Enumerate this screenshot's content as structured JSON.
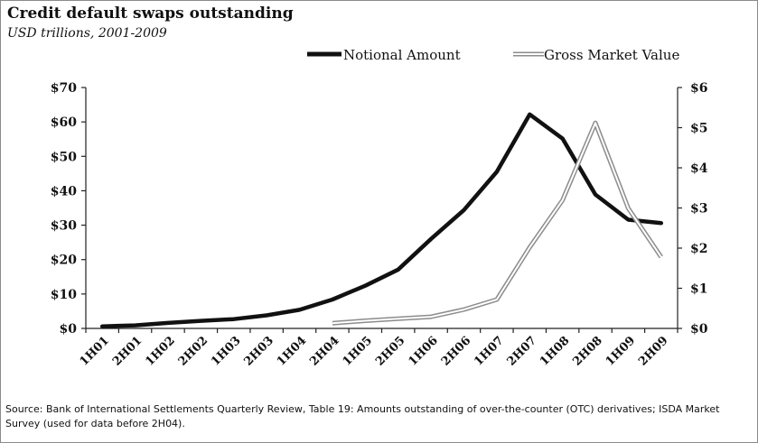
{
  "header": {
    "title": "Credit default swaps outstanding",
    "subtitle": "USD trillions, 2001-2009"
  },
  "footer": {
    "source": "Source: Bank of International Settlements Quarterly Review, Table 19: Amounts outstanding of over-the-counter (OTC) derivatives; ISDA Market Survey (used for data before 2H04)."
  },
  "chart_data": {
    "type": "line",
    "title": "Credit default swaps outstanding",
    "subtitle": "USD trillions, 2001-2009",
    "categories": [
      "1H01",
      "2H01",
      "1H02",
      "2H02",
      "1H03",
      "2H03",
      "1H04",
      "2H04",
      "1H05",
      "2H05",
      "1H06",
      "2H06",
      "1H07",
      "2H07",
      "1H08",
      "2H08",
      "1H09",
      "2H09"
    ],
    "series": [
      {
        "name": "Notional Amount",
        "axis": "left",
        "color": "#111111",
        "style": "solid-thick",
        "values": [
          0.6,
          0.9,
          1.6,
          2.2,
          2.7,
          3.8,
          5.4,
          8.4,
          12.4,
          17.1,
          26.0,
          34.4,
          45.5,
          62.2,
          55.2,
          38.9,
          31.6,
          30.6
        ]
      },
      {
        "name": "Gross Market Value",
        "axis": "right",
        "color": "#8c8c8c",
        "style": "double-line",
        "values": [
          null,
          null,
          null,
          null,
          null,
          null,
          null,
          0.13,
          0.19,
          0.24,
          0.29,
          0.47,
          0.72,
          2.02,
          3.19,
          5.12,
          2.99,
          1.78
        ]
      }
    ],
    "y_left": {
      "ticks": [
        "$0",
        "$10",
        "$20",
        "$30",
        "$40",
        "$50",
        "$60",
        "$70"
      ],
      "ylim": [
        0,
        70
      ]
    },
    "y_right": {
      "ticks": [
        "$0",
        "$1",
        "$2",
        "$3",
        "$4",
        "$5",
        "$6"
      ],
      "ylim": [
        0,
        6
      ]
    },
    "grid": false,
    "legend": "top"
  }
}
